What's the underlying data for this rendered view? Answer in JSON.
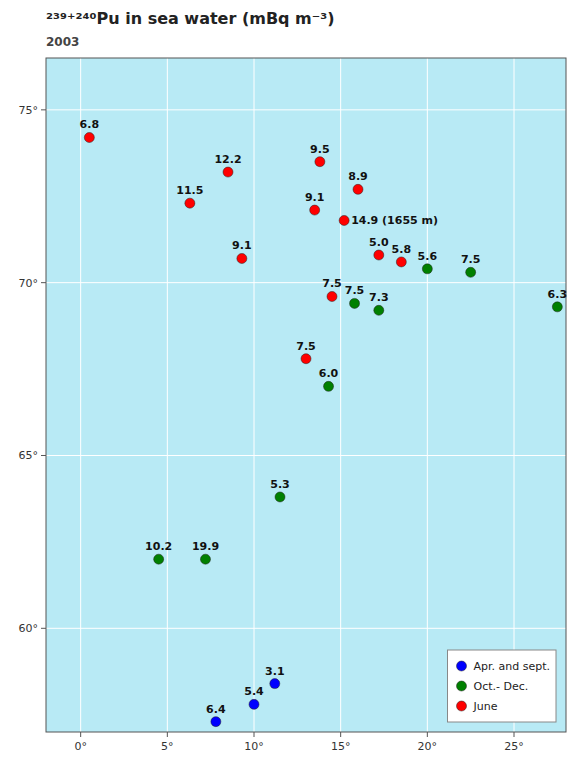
{
  "chart_data": {
    "type": "scatter",
    "title": "²³⁹⁺²⁴⁰Pu in sea water (mBq m⁻³)",
    "subtitle": "2003",
    "xlim": [
      -2,
      28
    ],
    "ylim": [
      57.0,
      76.5
    ],
    "xticks": [
      {
        "value": 0,
        "label": "0°"
      },
      {
        "value": 5,
        "label": "5°"
      },
      {
        "value": 10,
        "label": "10°"
      },
      {
        "value": 15,
        "label": "15°"
      },
      {
        "value": 20,
        "label": "20°"
      },
      {
        "value": 25,
        "label": "25°"
      }
    ],
    "yticks": [
      {
        "value": 60,
        "label": "60°"
      },
      {
        "value": 65,
        "label": "65°"
      },
      {
        "value": 70,
        "label": "70°"
      },
      {
        "value": 75,
        "label": "75°"
      }
    ],
    "grid": true,
    "legend": "lower right",
    "series": [
      {
        "name": "Apr. and sept.",
        "color": "blue",
        "x": [
          11.2,
          10.0,
          7.8
        ],
        "values": [
          58.4,
          57.8,
          57.3
        ],
        "labels": [
          "3.1",
          "5.4",
          "6.4"
        ]
      },
      {
        "name": "Oct.- Dec.",
        "color": "green",
        "x": [
          15.8,
          17.2,
          20.0,
          22.5,
          27.5,
          14.3,
          11.5,
          4.5,
          7.2
        ],
        "values": [
          69.4,
          69.2,
          70.4,
          70.3,
          69.3,
          67.0,
          63.8,
          62.0,
          62.0
        ],
        "labels": [
          "7.5",
          "7.3",
          "5.6",
          "7.5",
          "6.3",
          "6.0",
          "5.3",
          "10.2",
          "19.9"
        ]
      },
      {
        "name": "June",
        "color": "red",
        "x": [
          0.5,
          8.5,
          6.3,
          13.8,
          16.0,
          13.5,
          15.2,
          9.3,
          17.2,
          18.5,
          14.5,
          13.0
        ],
        "values": [
          74.2,
          73.2,
          72.3,
          73.5,
          72.7,
          72.1,
          71.8,
          70.7,
          70.8,
          70.6,
          69.6,
          67.8
        ],
        "labels": [
          "6.8",
          "12.2",
          "11.5",
          "9.5",
          "8.9",
          "9.1",
          "14.9 (1655 m)",
          "9.1",
          "5.0",
          "5.8",
          "7.5",
          "7.5"
        ]
      }
    ]
  }
}
